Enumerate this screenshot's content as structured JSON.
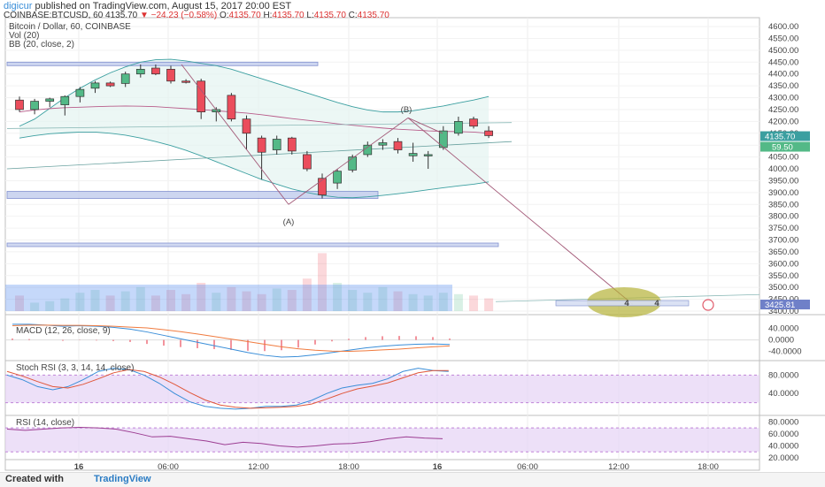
{
  "header": {
    "user": "digicur",
    "published": "published on TradingView.com, August 15, 2017 20:00 EST",
    "symbol": "COINBASE:BTCUSD, 60",
    "last": "4135.70",
    "change": "▼ −24.23 (−0.58%)",
    "o_label": "O:",
    "o": "4135.70",
    "h_label": "H:",
    "h": "4135.70",
    "l_label": "L:",
    "l": "4135.70",
    "c_label": "C:",
    "c": "4135.70"
  },
  "legends": {
    "main": "Bitcoin / Dollar, 60, COINBASE",
    "vol": "Vol (20)",
    "bb": "BB (20, close, 2)",
    "macd": "MACD (12, 26, close, 9)",
    "stoch": "Stoch RSI (3, 3, 14, 14, close)",
    "rsi": "RSI (14, close)"
  },
  "price_tags": {
    "last": "4135.70",
    "bb": "59.50",
    "target": "3425.81"
  },
  "pattern_labels": {
    "a": "(A)",
    "b": "(B)"
  },
  "projection_badge": "4",
  "footer": {
    "created": "Created with",
    "brand": "TradingView"
  },
  "colors": {
    "up": "#53b987",
    "down": "#eb4d5c",
    "bb": "#3b9fa0",
    "bb_mid": "#b85c8a",
    "zone_fill": "#c5cfee",
    "zone_border": "#6f80c8",
    "macd": "#3a8ed8",
    "signal": "#f07b3f",
    "stoch_k": "#3a8ed8",
    "stoch_d": "#e0573a",
    "rsi": "#9c3d92",
    "band": "#e6d3f5"
  },
  "chart_data": [
    {
      "type": "candlestick",
      "title": "Bitcoin / Dollar, 60, COINBASE",
      "ylim": [
        3400,
        4630
      ],
      "y_ticks": [
        3400,
        3450,
        3500,
        3550,
        3600,
        3650,
        3700,
        3750,
        3800,
        3850,
        3900,
        3950,
        4000,
        4050,
        4100,
        4150,
        4200,
        4250,
        4300,
        4350,
        4400,
        4450,
        4500,
        4550,
        4600
      ],
      "x_ticks": [
        "16",
        "06:00",
        "12:00",
        "18:00",
        "16",
        "06:00",
        "12:00",
        "18:00"
      ],
      "candles": [
        {
          "o": 4290,
          "h": 4305,
          "l": 4240,
          "c": 4250
        },
        {
          "o": 4250,
          "h": 4295,
          "l": 4230,
          "c": 4285
        },
        {
          "o": 4285,
          "h": 4300,
          "l": 4260,
          "c": 4295
        },
        {
          "o": 4270,
          "h": 4310,
          "l": 4225,
          "c": 4305
        },
        {
          "o": 4305,
          "h": 4345,
          "l": 4280,
          "c": 4335
        },
        {
          "o": 4340,
          "h": 4370,
          "l": 4320,
          "c": 4362
        },
        {
          "o": 4362,
          "h": 4368,
          "l": 4345,
          "c": 4350
        },
        {
          "o": 4360,
          "h": 4410,
          "l": 4345,
          "c": 4400
        },
        {
          "o": 4400,
          "h": 4440,
          "l": 4385,
          "c": 4420
        },
        {
          "o": 4425,
          "h": 4440,
          "l": 4395,
          "c": 4400
        },
        {
          "o": 4420,
          "h": 4435,
          "l": 4360,
          "c": 4370
        },
        {
          "o": 4370,
          "h": 4378,
          "l": 4360,
          "c": 4365
        },
        {
          "o": 4370,
          "h": 4380,
          "l": 4210,
          "c": 4240
        },
        {
          "o": 4240,
          "h": 4260,
          "l": 4200,
          "c": 4250
        },
        {
          "o": 4310,
          "h": 4320,
          "l": 4200,
          "c": 4210
        },
        {
          "o": 4210,
          "h": 4225,
          "l": 4080,
          "c": 4150
        },
        {
          "o": 4130,
          "h": 4140,
          "l": 3955,
          "c": 4070
        },
        {
          "o": 4080,
          "h": 4140,
          "l": 4060,
          "c": 4125
        },
        {
          "o": 4130,
          "h": 4135,
          "l": 4060,
          "c": 4075
        },
        {
          "o": 4060,
          "h": 4075,
          "l": 3990,
          "c": 4000
        },
        {
          "o": 3960,
          "h": 3980,
          "l": 3875,
          "c": 3890
        },
        {
          "o": 3940,
          "h": 4000,
          "l": 3915,
          "c": 3990
        },
        {
          "o": 3995,
          "h": 4060,
          "l": 3985,
          "c": 4050
        },
        {
          "o": 4060,
          "h": 4115,
          "l": 4050,
          "c": 4100
        },
        {
          "o": 4100,
          "h": 4125,
          "l": 4080,
          "c": 4110
        },
        {
          "o": 4115,
          "h": 4130,
          "l": 4065,
          "c": 4080
        },
        {
          "o": 4055,
          "h": 4110,
          "l": 4030,
          "c": 4065
        },
        {
          "o": 4060,
          "h": 4075,
          "l": 4000,
          "c": 4060
        },
        {
          "o": 4090,
          "h": 4180,
          "l": 4080,
          "c": 4160
        },
        {
          "o": 4150,
          "h": 4220,
          "l": 4140,
          "c": 4200
        },
        {
          "o": 4210,
          "h": 4220,
          "l": 4170,
          "c": 4180
        },
        {
          "o": 4160,
          "h": 4180,
          "l": 4130,
          "c": 4140
        }
      ],
      "bb_upper": [
        4180,
        4210,
        4255,
        4300,
        4340,
        4375,
        4405,
        4430,
        4450,
        4460,
        4462,
        4455,
        4445,
        4435,
        4420,
        4400,
        4380,
        4360,
        4340,
        4320,
        4300,
        4280,
        4262,
        4248,
        4240,
        4240,
        4245,
        4255,
        4265,
        4278,
        4290,
        4305
      ],
      "bb_middle": [
        4240,
        4248,
        4254,
        4258,
        4260,
        4262,
        4264,
        4265,
        4264,
        4262,
        4258,
        4254,
        4250,
        4245,
        4240,
        4235,
        4228,
        4220,
        4212,
        4205,
        4198,
        4190,
        4184,
        4178,
        4172,
        4167,
        4164,
        4160,
        4158,
        4157,
        4155,
        4150
      ],
      "bb_lower": [
        4130,
        4140,
        4148,
        4152,
        4155,
        4155,
        4150,
        4142,
        4130,
        4115,
        4098,
        4078,
        4055,
        4030,
        4005,
        3980,
        3955,
        3935,
        3915,
        3900,
        3888,
        3880,
        3878,
        3882,
        3888,
        3895,
        3903,
        3912,
        3920,
        3928,
        3935,
        3945
      ],
      "volume": [
        22,
        12,
        14,
        18,
        26,
        30,
        22,
        28,
        34,
        22,
        30,
        24,
        40,
        26,
        34,
        28,
        24,
        32,
        30,
        46,
        82,
        40,
        30,
        26,
        34,
        28,
        24,
        22,
        26,
        24,
        22,
        18
      ],
      "zones": [
        {
          "name": "resistance",
          "from": 4440,
          "to": 4450
        },
        {
          "name": "support",
          "from": 3875,
          "to": 3905
        },
        {
          "name": "level",
          "from": 3682,
          "to": 3687
        }
      ],
      "wave_points": [
        {
          "label": "",
          "price": 4440
        },
        {
          "label": "(A)",
          "price": 3850
        },
        {
          "label": "(B)",
          "price": 4215
        },
        {
          "label": "target",
          "price": 3428
        }
      ]
    },
    {
      "type": "line",
      "title": "MACD (12, 26, close, 9)",
      "y_ticks": [
        "40.0000",
        "0.0000",
        "-40.0000"
      ],
      "ylim": [
        -60,
        70
      ],
      "series": [
        {
          "name": "MACD",
          "values": [
            55,
            55,
            52,
            48,
            50,
            48,
            44,
            38,
            28,
            16,
            4,
            -8,
            -20,
            -32,
            -44,
            -54,
            -60,
            -58,
            -52,
            -44,
            -36,
            -28,
            -22,
            -18,
            -15,
            -14,
            -16
          ]
        },
        {
          "name": "Signal",
          "values": [
            50,
            52,
            52,
            51,
            51,
            50,
            48,
            45,
            42,
            36,
            29,
            21,
            12,
            3,
            -6,
            -15,
            -24,
            -31,
            -36,
            -39,
            -40,
            -38,
            -35,
            -32,
            -28,
            -24,
            -21
          ]
        }
      ],
      "hist": [
        5,
        3,
        0,
        -3,
        -1,
        -2,
        -4,
        -7,
        -14,
        -20,
        -25,
        -29,
        -32,
        -35,
        -38,
        -39,
        -36,
        -27,
        -16,
        -5,
        4,
        10,
        13,
        14,
        13,
        10,
        5
      ]
    },
    {
      "type": "line",
      "title": "Stoch RSI (3, 3, 14, 14, close)",
      "y_ticks": [
        "80.0000",
        "40.0000"
      ],
      "ylim": [
        0,
        100
      ],
      "series": [
        {
          "name": "K",
          "values": [
            80,
            70,
            55,
            48,
            55,
            70,
            88,
            95,
            92,
            80,
            62,
            40,
            22,
            12,
            8,
            6,
            8,
            12,
            12,
            15,
            25,
            40,
            52,
            58,
            62,
            72,
            88,
            95,
            90,
            88
          ]
        },
        {
          "name": "D",
          "values": [
            88,
            78,
            66,
            55,
            52,
            60,
            72,
            85,
            92,
            88,
            76,
            60,
            42,
            26,
            15,
            10,
            8,
            9,
            10,
            12,
            17,
            28,
            40,
            50,
            56,
            63,
            74,
            85,
            90,
            90
          ]
        }
      ]
    },
    {
      "type": "line",
      "title": "RSI (14, close)",
      "y_ticks": [
        "80.0000",
        "60.0000",
        "40.0000",
        "20.0000"
      ],
      "ylim": [
        20,
        85
      ],
      "series": [
        {
          "name": "RSI",
          "values": [
            68,
            66,
            68,
            70,
            71,
            70,
            68,
            62,
            55,
            56,
            52,
            48,
            42,
            46,
            44,
            40,
            38,
            40,
            43,
            44,
            47,
            52,
            55,
            53,
            52
          ]
        }
      ]
    }
  ]
}
